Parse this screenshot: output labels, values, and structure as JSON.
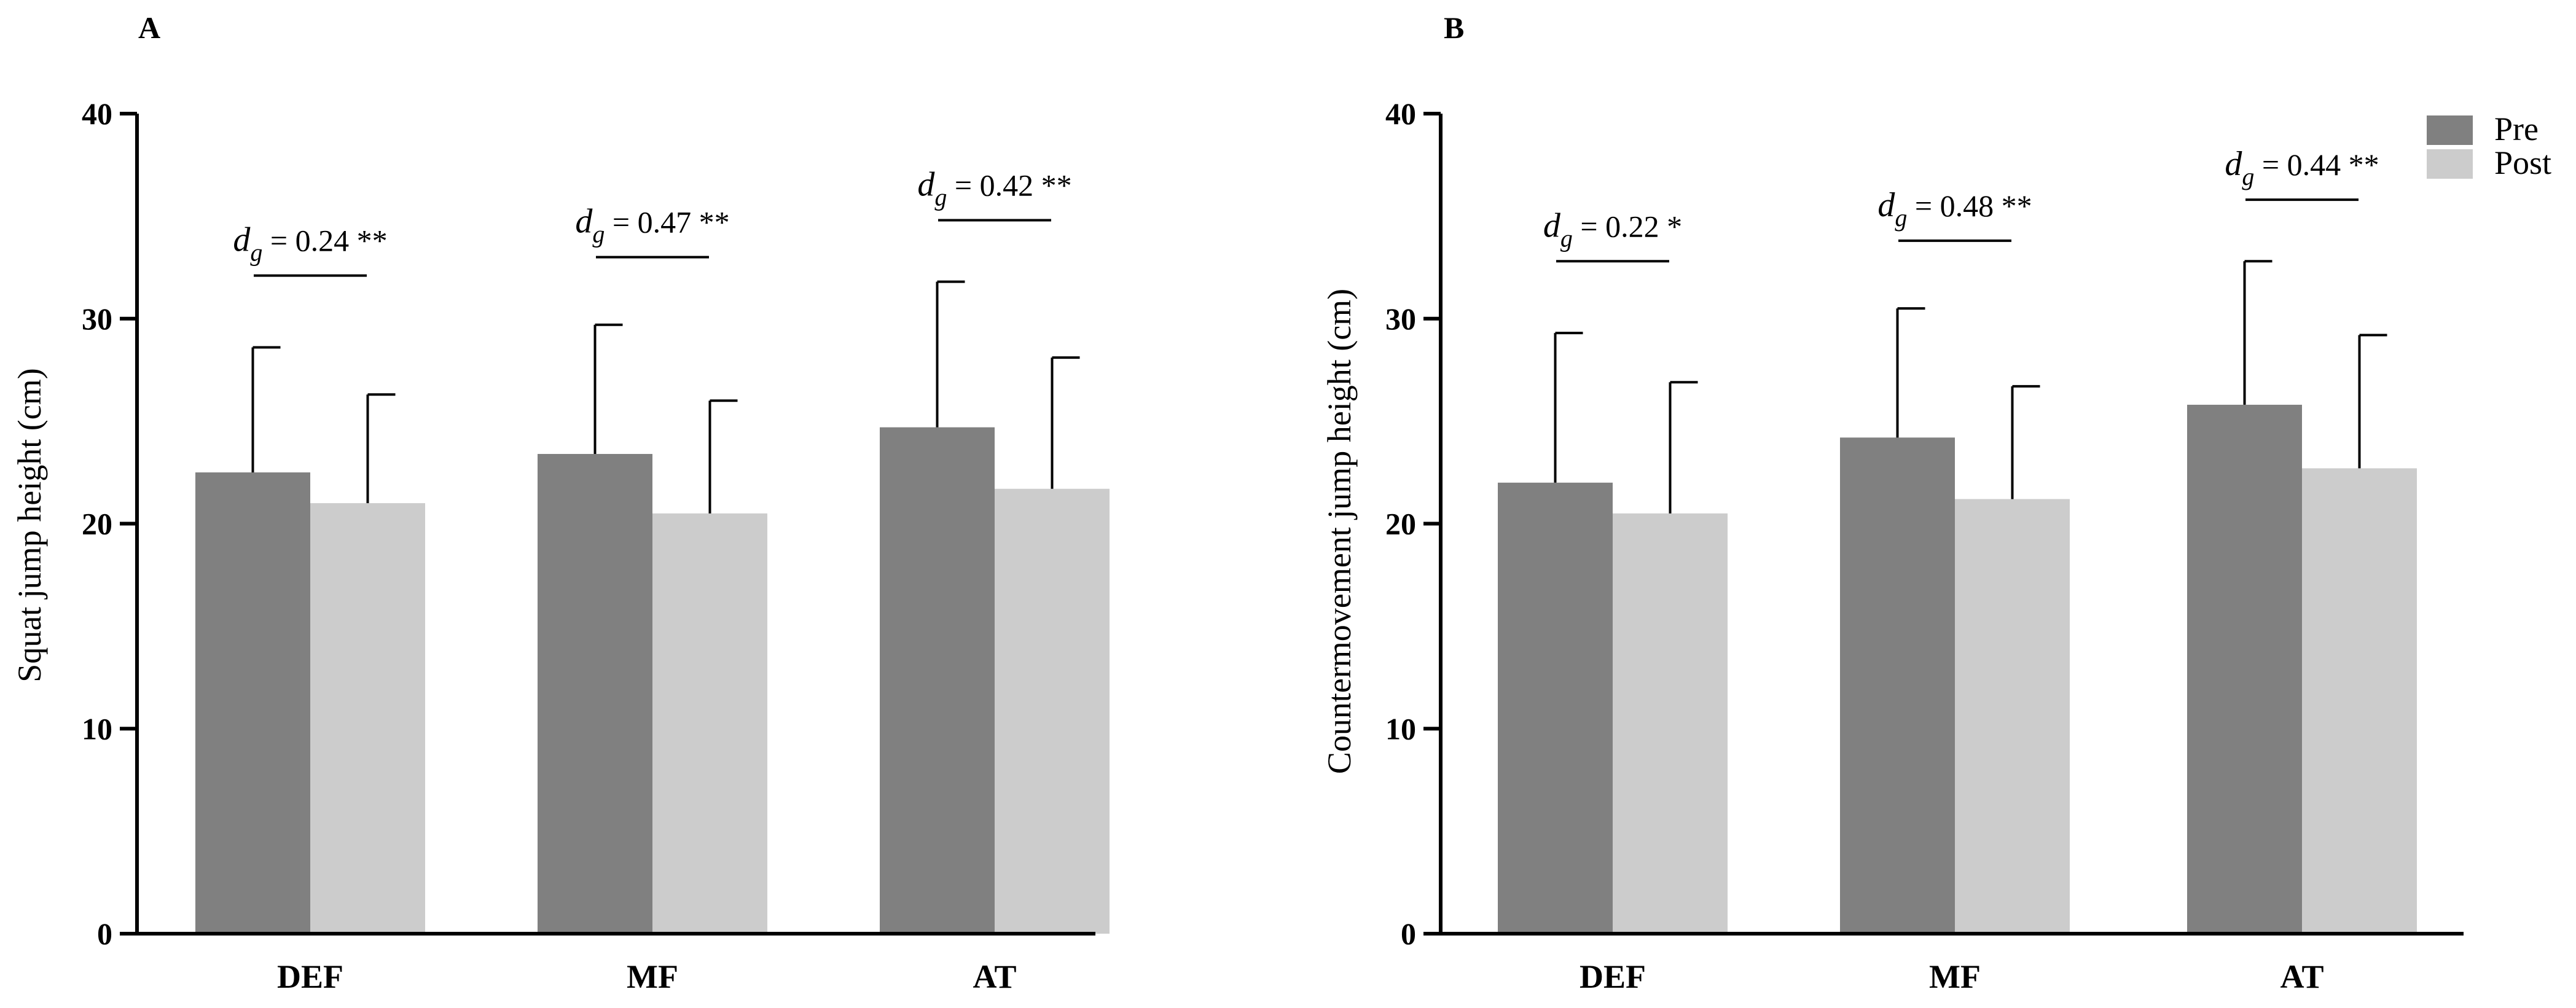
{
  "chart_data": [
    {
      "type": "bar",
      "panel_label": "A",
      "categories": [
        "DEF",
        "MF",
        "AT"
      ],
      "series": [
        {
          "name": "Pre",
          "values": [
            22.5,
            23.4,
            24.7
          ],
          "sd": [
            6.1,
            6.3,
            7.1
          ]
        },
        {
          "name": "Post",
          "values": [
            21.0,
            20.5,
            21.7
          ],
          "sd": [
            5.3,
            5.5,
            6.4
          ]
        }
      ],
      "annotations": [
        {
          "symbol": "d",
          "subscript": "g",
          "text": " = 0.24 **"
        },
        {
          "symbol": "d",
          "subscript": "g",
          "text": " = 0.47 **"
        },
        {
          "symbol": "d",
          "subscript": "g",
          "text": " = 0.42 **"
        }
      ],
      "xlabel": "",
      "ylabel": "Squat jump height (cm)",
      "ylim": [
        0,
        40
      ],
      "yticks": [
        "0",
        "10",
        "20",
        "30",
        "40"
      ],
      "grid": false
    },
    {
      "type": "bar",
      "panel_label": "B",
      "categories": [
        "DEF",
        "MF",
        "AT"
      ],
      "series": [
        {
          "name": "Pre",
          "values": [
            22.0,
            24.2,
            25.8
          ],
          "sd": [
            7.3,
            6.3,
            7.0
          ]
        },
        {
          "name": "Post",
          "values": [
            20.5,
            21.2,
            22.7
          ],
          "sd": [
            6.4,
            5.5,
            6.5
          ]
        }
      ],
      "annotations": [
        {
          "symbol": "d",
          "subscript": "g",
          "text": " = 0.22 *"
        },
        {
          "symbol": "d",
          "subscript": "g",
          "text": " = 0.48 **"
        },
        {
          "symbol": "d",
          "subscript": "g",
          "text": " = 0.44 **"
        }
      ],
      "xlabel": "",
      "ylabel": "Countermovement jump height (cm)",
      "ylim": [
        0,
        40
      ],
      "yticks": [
        "0",
        "10",
        "20",
        "30",
        "40"
      ],
      "grid": false,
      "legend": {
        "position": "top-right",
        "entries": [
          "Pre",
          "Post"
        ]
      }
    }
  ],
  "colors": {
    "pre": "#808080",
    "post": "#cccccc",
    "axis": "#000000"
  }
}
